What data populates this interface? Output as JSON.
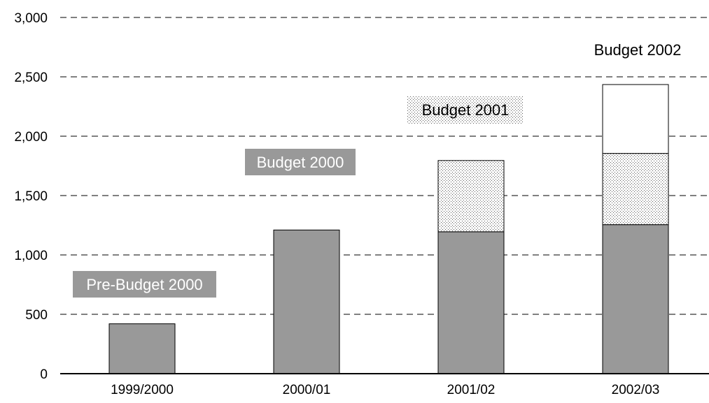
{
  "chart_data": {
    "type": "bar",
    "stacked": true,
    "categories": [
      "1999/2000",
      "2000/01",
      "2001/02",
      "2002/03"
    ],
    "series": [
      {
        "key": "base",
        "values": [
          420,
          1210,
          1195,
          1255
        ],
        "color": "#999999",
        "pattern": "solid"
      },
      {
        "key": "b2001",
        "values": [
          0,
          0,
          600,
          600
        ],
        "color": "#ffffff",
        "pattern": "dots"
      },
      {
        "key": "b2002",
        "values": [
          0,
          0,
          0,
          580
        ],
        "color": "#ffffff",
        "pattern": "none"
      }
    ],
    "ylim": [
      0,
      3000
    ],
    "yticks": [
      0,
      500,
      1000,
      1500,
      2000,
      2500,
      3000
    ],
    "ytick_labels": [
      "0",
      "500",
      "1,000",
      "1,500",
      "2,000",
      "2,500",
      "3,000"
    ],
    "grid": "dashed-horizontal",
    "annotations": [
      {
        "text": "Pre-Budget 2000",
        "style": "gray-box"
      },
      {
        "text": "Budget 2000",
        "style": "gray-box"
      },
      {
        "text": "Budget 2001",
        "style": "dotted-box"
      },
      {
        "text": "Budget 2002",
        "style": "plain"
      }
    ]
  }
}
